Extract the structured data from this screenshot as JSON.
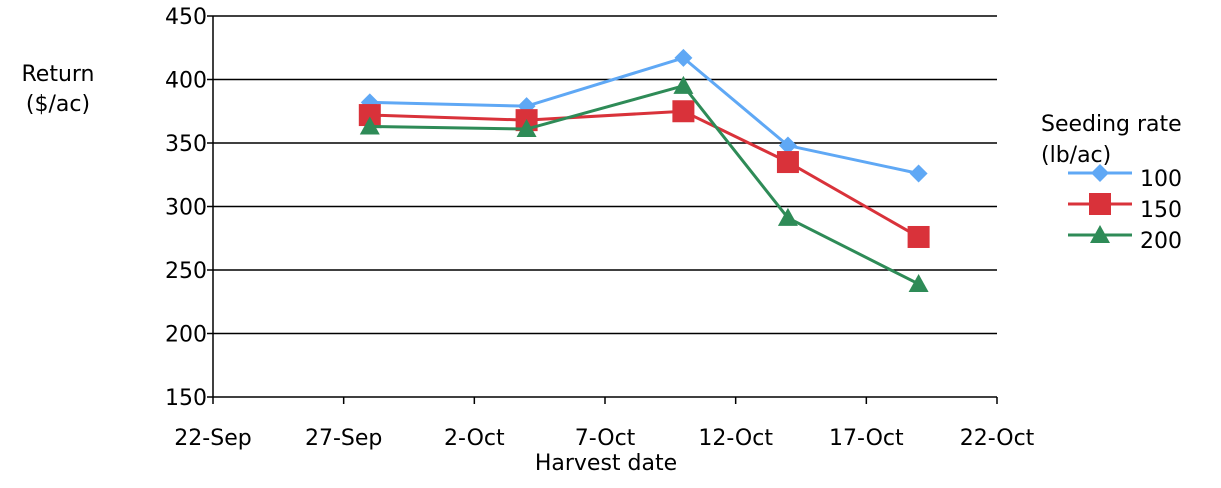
{
  "chart_data": {
    "type": "line",
    "xlabel": "Harvest date",
    "ylabel_lines": [
      "Return",
      "($/ac)"
    ],
    "x_tick_labels": [
      "22-Sep",
      "27-Sep",
      "2-Oct",
      "7-Oct",
      "12-Oct",
      "17-Oct",
      "22-Oct"
    ],
    "xlim": [
      "22-Sep",
      "22-Oct"
    ],
    "ylim": [
      150,
      450
    ],
    "y_ticks": [
      150,
      200,
      250,
      300,
      350,
      400,
      450
    ],
    "x": [
      "28-Sep",
      "4-Oct",
      "10-Oct",
      "14-Oct",
      "19-Oct"
    ],
    "series": [
      {
        "name": "100",
        "values": [
          382,
          379,
          417,
          348,
          326
        ],
        "color": "#5fa8f5",
        "marker": "diamond"
      },
      {
        "name": "150",
        "values": [
          372,
          368,
          375,
          335,
          276
        ],
        "color": "#d9323a",
        "marker": "square"
      },
      {
        "name": "200",
        "values": [
          363,
          361,
          395,
          291,
          239
        ],
        "color": "#2e8b57",
        "marker": "triangle"
      }
    ],
    "legend_title_lines": [
      "Seeding rate",
      "(lb/ac)"
    ],
    "legend_position": "right",
    "grid": "horizontal"
  }
}
